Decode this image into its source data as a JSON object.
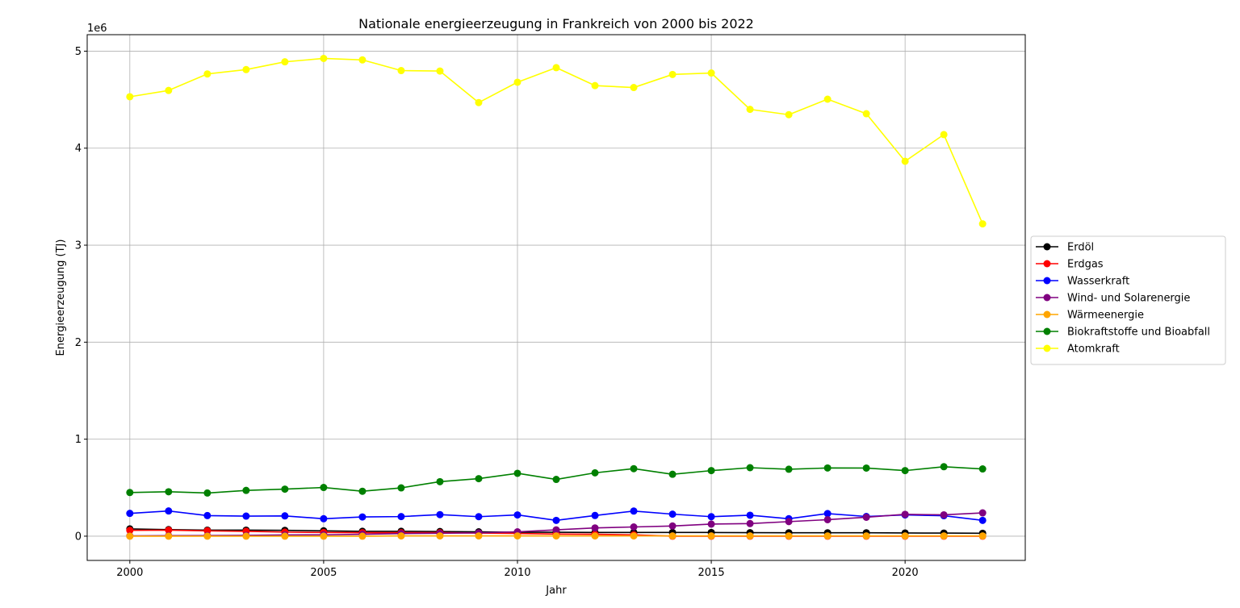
{
  "chart_data": {
    "type": "line",
    "title": "Nationale energieerzeugung in Frankreich von 2000 bis 2022",
    "xlabel": "Jahr",
    "ylabel": "Energieerzeugung (TJ)",
    "y_offset_label": "1e6",
    "xlim": [
      1998.9,
      2023.1
    ],
    "ylim": [
      -250000,
      5170000
    ],
    "x_ticks": [
      2000,
      2005,
      2010,
      2015,
      2020
    ],
    "y_ticks": [
      0,
      1000000,
      2000000,
      3000000,
      4000000,
      5000000
    ],
    "y_tick_labels": [
      "0",
      "1",
      "2",
      "3",
      "4",
      "5"
    ],
    "grid": true,
    "legend_position": "center-right-outside",
    "x": [
      2000,
      2001,
      2002,
      2003,
      2004,
      2005,
      2006,
      2007,
      2008,
      2009,
      2010,
      2011,
      2012,
      2013,
      2014,
      2015,
      2016,
      2017,
      2018,
      2019,
      2020,
      2021,
      2022
    ],
    "series": [
      {
        "name": "Erdöl",
        "color": "#000000",
        "values": [
          75000,
          68000,
          62000,
          62000,
          60000,
          55000,
          50000,
          50000,
          48000,
          45000,
          40000,
          40000,
          38000,
          38000,
          38000,
          38000,
          36000,
          35000,
          35000,
          35000,
          33000,
          32000,
          30000
        ]
      },
      {
        "name": "Erdgas",
        "color": "#ff0000",
        "values": [
          60000,
          62000,
          55000,
          50000,
          42000,
          38000,
          36000,
          36000,
          36000,
          32000,
          28000,
          22000,
          20000,
          14000,
          0,
          0,
          0,
          0,
          0,
          0,
          0,
          0,
          0
        ]
      },
      {
        "name": "Wasserkraft",
        "color": "#0000ff",
        "values": [
          235000,
          260000,
          212000,
          207000,
          209000,
          180000,
          198000,
          202000,
          222000,
          201000,
          219000,
          163000,
          213000,
          259000,
          227000,
          201000,
          216000,
          180000,
          233000,
          203000,
          219000,
          211000,
          163000
        ]
      },
      {
        "name": "Wind- und Solarenergie",
        "color": "#800080",
        "values": [
          3000,
          5000,
          6000,
          8000,
          12000,
          14000,
          20000,
          27000,
          30000,
          34000,
          45000,
          65000,
          85000,
          95000,
          105000,
          125000,
          130000,
          150000,
          170000,
          195000,
          225000,
          220000,
          240000
        ]
      },
      {
        "name": "Wärmeenergie",
        "color": "#ffa500",
        "values": [
          0,
          0,
          0,
          0,
          0,
          0,
          0,
          3000,
          3000,
          3000,
          3000,
          3000,
          3000,
          3000,
          3000,
          3000,
          3000,
          3000,
          3000,
          3000,
          3000,
          3000,
          3000
        ]
      },
      {
        "name": "Biokraftstoffe und Bioabfall",
        "color": "#008000",
        "values": [
          450000,
          458000,
          445000,
          472000,
          485000,
          502000,
          463000,
          498000,
          562000,
          593000,
          648000,
          585000,
          653000,
          696000,
          638000,
          676000,
          706000,
          690000,
          703000,
          702000,
          676000,
          716000,
          693000
        ]
      },
      {
        "name": "Atomkraft",
        "color": "#ffff00",
        "values": [
          4530000,
          4595000,
          4765000,
          4810000,
          4890000,
          4925000,
          4910000,
          4800000,
          4795000,
          4470000,
          4680000,
          4830000,
          4645000,
          4625000,
          4760000,
          4775000,
          4400000,
          4345000,
          4505000,
          4355000,
          3865000,
          4140000,
          3220000
        ]
      }
    ]
  }
}
